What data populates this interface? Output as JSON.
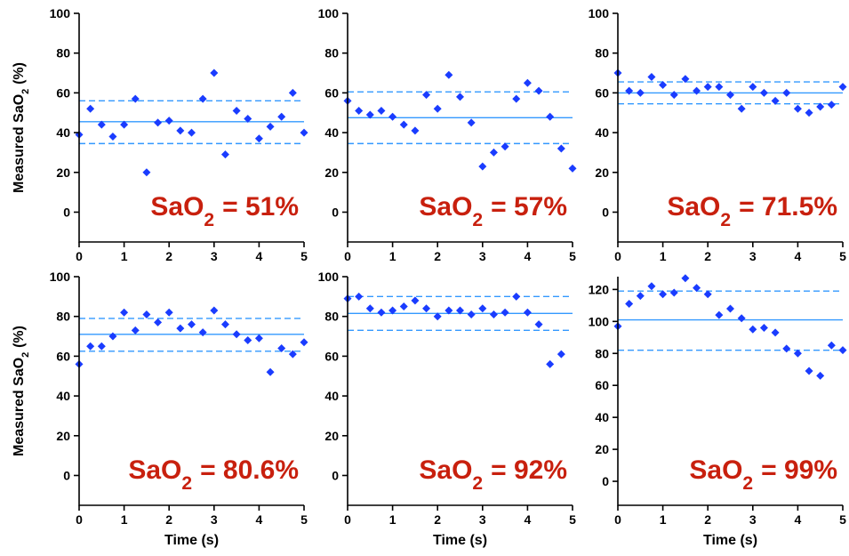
{
  "chart_data": [
    {
      "type": "scatter",
      "color": "#1a3cff",
      "line_color": "#3399ff",
      "annotation": [
        "SaO",
        "2",
        "= 51%"
      ],
      "ylabel": [
        "Measured SaO",
        "2",
        "(%)"
      ],
      "x": [
        0,
        0.25,
        0.5,
        0.75,
        1,
        1.25,
        1.5,
        1.75,
        2,
        2.25,
        2.5,
        2.75,
        3,
        3.25,
        3.5,
        3.75,
        4,
        4.25,
        4.5,
        4.75,
        5
      ],
      "values": [
        39,
        52,
        44,
        38,
        44,
        57,
        20,
        45,
        46,
        41,
        40,
        57,
        70,
        29,
        51,
        47,
        37,
        43,
        48,
        60,
        40
      ],
      "reference_lines": [
        {
          "value": 45.5,
          "style": "solid"
        },
        {
          "value": 56,
          "style": "dashed"
        },
        {
          "value": 34.5,
          "style": "dashed"
        }
      ],
      "xlim": [
        0,
        5
      ],
      "xticks": [
        0,
        1,
        2,
        3,
        4,
        5
      ],
      "ylim": [
        -15,
        100
      ],
      "yticks": [
        0,
        20,
        40,
        60,
        80,
        100
      ]
    },
    {
      "type": "scatter",
      "color": "#1a3cff",
      "line_color": "#3399ff",
      "annotation": [
        "SaO",
        "2",
        "= 57%"
      ],
      "x": [
        0,
        0.25,
        0.5,
        0.75,
        1,
        1.25,
        1.5,
        1.75,
        2,
        2.25,
        2.5,
        2.75,
        3,
        3.25,
        3.5,
        3.75,
        4,
        4.25,
        4.5,
        4.75,
        5
      ],
      "values": [
        56,
        51,
        49,
        51,
        48,
        44,
        41,
        59,
        52,
        69,
        58,
        45,
        23,
        30,
        33,
        57,
        65,
        61,
        48,
        32,
        22
      ],
      "reference_lines": [
        {
          "value": 47.5,
          "style": "solid"
        },
        {
          "value": 60.5,
          "style": "dashed"
        },
        {
          "value": 34.5,
          "style": "dashed"
        }
      ],
      "xlim": [
        0,
        5
      ],
      "xticks": [
        0,
        1,
        2,
        3,
        4,
        5
      ],
      "ylim": [
        -15,
        100
      ],
      "yticks": [
        0,
        20,
        40,
        60,
        80,
        100
      ]
    },
    {
      "type": "scatter",
      "color": "#1a3cff",
      "line_color": "#3399ff",
      "annotation": [
        "SaO",
        "2",
        "= 71.5%"
      ],
      "x": [
        0,
        0.25,
        0.5,
        0.75,
        1,
        1.25,
        1.5,
        1.75,
        2,
        2.25,
        2.5,
        2.75,
        3,
        3.25,
        3.5,
        3.75,
        4,
        4.25,
        4.5,
        4.75,
        5
      ],
      "values": [
        70,
        61,
        60,
        68,
        64,
        59,
        67,
        61,
        63,
        63,
        59,
        52,
        63,
        60,
        56,
        60,
        52,
        50,
        53,
        54,
        63
      ],
      "reference_lines": [
        {
          "value": 60,
          "style": "solid"
        },
        {
          "value": 65.5,
          "style": "dashed"
        },
        {
          "value": 54.5,
          "style": "dashed"
        }
      ],
      "xlim": [
        0,
        5
      ],
      "xticks": [
        0,
        1,
        2,
        3,
        4,
        5
      ],
      "ylim": [
        -15,
        100
      ],
      "yticks": [
        0,
        20,
        40,
        60,
        80,
        100
      ]
    },
    {
      "type": "scatter",
      "color": "#1a3cff",
      "line_color": "#3399ff",
      "annotation": [
        "SaO",
        "2",
        "= 80.6%"
      ],
      "ylabel": [
        "Measured SaO",
        "2",
        "(%)"
      ],
      "xlabel": "Time (s)",
      "x": [
        0,
        0.25,
        0.5,
        0.75,
        1,
        1.25,
        1.5,
        1.75,
        2,
        2.25,
        2.5,
        2.75,
        3,
        3.25,
        3.5,
        3.75,
        4,
        4.25,
        4.5,
        4.75,
        5
      ],
      "values": [
        56,
        65,
        65,
        70,
        82,
        73,
        81,
        77,
        82,
        74,
        76,
        72,
        83,
        76,
        71,
        68,
        69,
        52,
        64,
        61,
        67
      ],
      "reference_lines": [
        {
          "value": 71,
          "style": "solid"
        },
        {
          "value": 79,
          "style": "dashed"
        },
        {
          "value": 62.5,
          "style": "dashed"
        }
      ],
      "xlim": [
        0,
        5
      ],
      "xticks": [
        0,
        1,
        2,
        3,
        4,
        5
      ],
      "ylim": [
        -15,
        100
      ],
      "yticks": [
        0,
        20,
        40,
        60,
        80,
        100
      ]
    },
    {
      "type": "scatter",
      "color": "#1a3cff",
      "line_color": "#3399ff",
      "annotation": [
        "SaO",
        "2",
        "= 92%"
      ],
      "xlabel": "Time (s)",
      "x": [
        0,
        0.25,
        0.5,
        0.75,
        1,
        1.25,
        1.5,
        1.75,
        2,
        2.25,
        2.5,
        2.75,
        3,
        3.25,
        3.5,
        3.75,
        4,
        4.25,
        4.5,
        4.75
      ],
      "values": [
        89,
        90,
        84,
        82,
        83,
        85,
        88,
        84,
        80,
        83,
        83,
        81,
        84,
        81,
        82,
        90,
        82,
        76,
        56,
        61
      ],
      "reference_lines": [
        {
          "value": 81.5,
          "style": "solid"
        },
        {
          "value": 90,
          "style": "dashed"
        },
        {
          "value": 73,
          "style": "dashed"
        }
      ],
      "xlim": [
        0,
        5
      ],
      "xticks": [
        0,
        1,
        2,
        3,
        4,
        5
      ],
      "ylim": [
        -15,
        100
      ],
      "yticks": [
        0,
        20,
        40,
        60,
        80,
        100
      ]
    },
    {
      "type": "scatter",
      "color": "#1a3cff",
      "line_color": "#3399ff",
      "annotation": [
        "SaO",
        "2",
        "= 99%"
      ],
      "xlabel": "Time (s)",
      "x": [
        0,
        0.25,
        0.5,
        0.75,
        1,
        1.25,
        1.5,
        1.75,
        2,
        2.25,
        2.5,
        2.75,
        3,
        3.25,
        3.5,
        3.75,
        4,
        4.25,
        4.5,
        4.75,
        5
      ],
      "values": [
        97,
        111,
        116,
        122,
        117,
        118,
        127,
        121,
        117,
        104,
        108,
        102,
        95,
        96,
        93,
        83,
        80,
        69,
        66,
        85,
        82
      ],
      "reference_lines": [
        {
          "value": 101,
          "style": "solid"
        },
        {
          "value": 119,
          "style": "dashed"
        },
        {
          "value": 82,
          "style": "dashed"
        }
      ],
      "xlim": [
        0,
        5
      ],
      "xticks": [
        0,
        1,
        2,
        3,
        4,
        5
      ],
      "ylim": [
        -15,
        128
      ],
      "yticks": [
        0,
        20,
        40,
        60,
        80,
        100,
        120
      ]
    }
  ]
}
